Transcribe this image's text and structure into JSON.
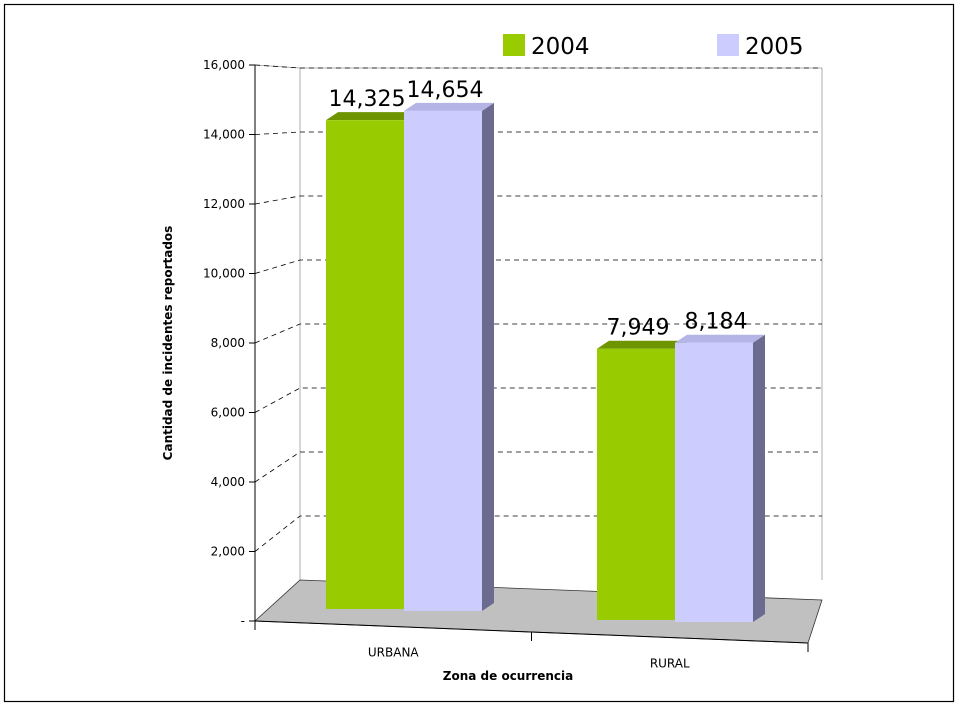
{
  "chart_data": {
    "type": "bar",
    "categories": [
      "URBANA",
      "RURAL"
    ],
    "series": [
      {
        "name": "2004",
        "values": [
          14325,
          7949
        ],
        "color": "#99cc00",
        "labels": [
          "14,325",
          "7,949"
        ]
      },
      {
        "name": "2005",
        "values": [
          14654,
          8184
        ],
        "color": "#ccccff",
        "labels": [
          "14,654",
          "8,184"
        ]
      }
    ],
    "xlabel": "Zona de ocurrencia",
    "ylabel": "Cantidad de incidentes reportados",
    "ylim": [
      0,
      16000
    ],
    "yticks": [
      0,
      2000,
      4000,
      6000,
      8000,
      10000,
      12000,
      14000,
      16000
    ],
    "ytick_labels": [
      "-",
      "2,000",
      "4,000",
      "6,000",
      "8,000",
      "10,000",
      "12,000",
      "14,000",
      "16,000"
    ],
    "grid": true,
    "legend_position": "top-right",
    "style": "3d-clustered-column",
    "colors": {
      "floor": "#c0c0c0",
      "bar_side_2005": "#6b6b8f",
      "bar_top_2004": "#6e9400",
      "grid": "#000000"
    }
  }
}
